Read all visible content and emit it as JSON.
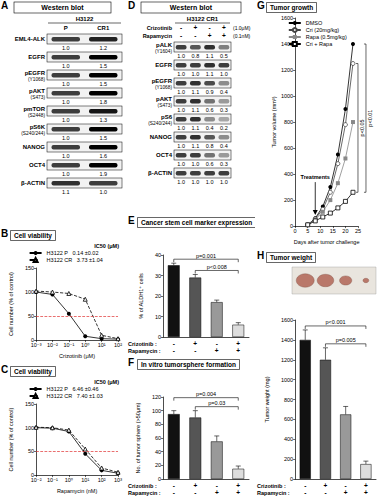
{
  "western_blots": [
    {
      "panel": "A",
      "title": "Western blot",
      "cell_line": "H3122",
      "columns": [
        "P",
        "CR1"
      ],
      "rows": [
        {
          "label": "EML4-ALK",
          "values": [
            "1.0",
            "1.2"
          ]
        },
        {
          "label": "EGFR",
          "values": [
            "1.0",
            "1.5"
          ]
        },
        {
          "label": "pEGFR",
          "site": "(Y1068)",
          "values": [
            "1.0",
            "1.5"
          ]
        },
        {
          "label": "pAKT",
          "site": "(S473)",
          "values": [
            "1.0",
            "1.8"
          ]
        },
        {
          "label": "pmTOR",
          "site": "(S2448)",
          "values": [
            "1.0",
            "1.3"
          ]
        },
        {
          "label": "pS6K",
          "site": "(S240/244)",
          "values": [
            "1.0",
            "1.5"
          ]
        },
        {
          "label": "NANOG",
          "values": [
            "1.0",
            "1.6"
          ]
        },
        {
          "label": "OCT4",
          "values": [
            "1.0",
            "1.9"
          ]
        },
        {
          "label": "β-ACTIN",
          "values": [
            "1.1",
            "1.0"
          ]
        }
      ]
    },
    {
      "panel": "D",
      "title": "Western blot",
      "cell_line": "H3122 CR1",
      "treatments": [
        {
          "label": "Crizotinib",
          "signs": [
            "-",
            "+",
            "-",
            "+"
          ],
          "dose": "(1.0μM)"
        },
        {
          "label": "Rapamycin",
          "signs": [
            "-",
            "-",
            "+",
            "+"
          ],
          "dose": "(0.1nM)"
        }
      ],
      "rows": [
        {
          "label": "pALK",
          "site": "(Y1604)",
          "values": [
            "1.0",
            "0.8",
            "1.1",
            "0.5"
          ]
        },
        {
          "label": "EGFR",
          "values": [
            "1.0",
            "1.0",
            "1.1",
            "1.0"
          ]
        },
        {
          "label": "pEGFR",
          "site": "(Y1068)",
          "values": [
            "1.0",
            "1.1",
            "0.9",
            "0.4"
          ]
        },
        {
          "label": "pAKT",
          "site": "(S473)",
          "values": [
            "1.0",
            "1.1",
            "0.6",
            "0.3"
          ]
        },
        {
          "label": "pS6",
          "site": "(S240/244)",
          "values": [
            "1.0",
            "1.1",
            "0.4",
            "0.2"
          ]
        },
        {
          "label": "NANOG",
          "values": [
            "1.0",
            "1.1",
            "0.8",
            "0.4"
          ]
        },
        {
          "label": "OCT4",
          "values": [
            "1.0",
            "1.0",
            "0.6",
            "0.3"
          ]
        },
        {
          "label": "β-ACTIN",
          "values": [
            "1.0",
            "1.0",
            "1.0",
            "1.0"
          ]
        }
      ]
    }
  ],
  "chart_data": [
    {
      "panel": "B",
      "type": "line",
      "title": "Cell viability",
      "x_label": "Crizotinib (μM)",
      "y_label": "Cell number (% of control)",
      "log": "x",
      "grid": false,
      "legend": "upper left",
      "ic50_header": "IC50 (μM)",
      "xlim": [
        0.001,
        100
      ],
      "xticks": [
        {
          "value": 0.001,
          "label": "10⁻³"
        },
        {
          "value": 0.01,
          "label": "10⁻²"
        },
        {
          "value": 0.1,
          "label": "10⁻¹"
        },
        {
          "value": 1,
          "label": "10⁰"
        },
        {
          "value": 10,
          "label": "10¹"
        },
        {
          "value": 100,
          "label": "10²"
        }
      ],
      "ylim": [
        0,
        150
      ],
      "yticks": [
        0,
        50,
        100,
        150
      ],
      "reference_line": {
        "y": 50,
        "color": "#e03030"
      },
      "x": [
        0.001,
        0.01,
        0.1,
        1,
        10,
        100
      ],
      "series": [
        {
          "name": "H3122 P",
          "color": "#000000",
          "marker": "circle",
          "line_style": "solid",
          "ic50": "0.14 ±0.02",
          "values": [
            100,
            95,
            55,
            8,
            3,
            2
          ]
        },
        {
          "name": "H3122 CR",
          "color": "#000000",
          "marker": "triangle_open",
          "line_style": "dashed",
          "ic50": "3.73 ±1.04",
          "values": [
            102,
            100,
            97,
            85,
            10,
            3
          ]
        }
      ]
    },
    {
      "panel": "C",
      "type": "line",
      "title": "Cell viability",
      "x_label": "Rapamycin (nM)",
      "y_label": "Cell number (% of control)",
      "log": "x",
      "grid": false,
      "legend": "upper left",
      "ic50_header": "IC50 (μM)",
      "xlim": [
        0.01,
        1000
      ],
      "xticks": [
        {
          "value": 0.01,
          "label": "10⁻²"
        },
        {
          "value": 0.1,
          "label": "10⁻¹"
        },
        {
          "value": 1,
          "label": "10⁰"
        },
        {
          "value": 10,
          "label": "10¹"
        },
        {
          "value": 100,
          "label": "10²"
        },
        {
          "value": 1000,
          "label": "10³"
        }
      ],
      "ylim": [
        0,
        150
      ],
      "yticks": [
        0,
        50,
        100,
        150
      ],
      "reference_line": {
        "y": 50,
        "color": "#e03030"
      },
      "x": [
        0.01,
        0.1,
        1,
        10,
        100,
        1000
      ],
      "series": [
        {
          "name": "H3122 P",
          "color": "#000000",
          "marker": "circle",
          "line_style": "solid",
          "ic50": "6.46 ±0.46",
          "values": [
            100,
            99,
            92,
            45,
            10,
            4
          ]
        },
        {
          "name": "H3122 CR",
          "color": "#000000",
          "marker": "triangle_open",
          "line_style": "dashed",
          "ic50": "7.40 ±1.03",
          "values": [
            101,
            100,
            95,
            55,
            15,
            6
          ]
        }
      ]
    },
    {
      "panel": "E",
      "type": "bar",
      "title": "Cancer stem cell marker expression",
      "y_label": "% of ALDH1⁺ cells",
      "grid": false,
      "categories": [
        null,
        null,
        null,
        null
      ],
      "values": [
        35,
        29,
        17,
        6
      ],
      "errors": [
        1,
        1.5,
        1,
        1
      ],
      "colors": [
        "#111111",
        "#555555",
        "#999999",
        "#dddddd"
      ],
      "ylim": [
        0,
        40
      ],
      "yticks": [
        0,
        10,
        20,
        30,
        40
      ],
      "treatments": [
        {
          "label": "Crizotinib :",
          "signs": [
            "-",
            "+",
            "-",
            "+"
          ]
        },
        {
          "label": "Rapamycin :",
          "signs": [
            "-",
            "-",
            "+",
            "+"
          ]
        }
      ],
      "comparisons": [
        {
          "between": [
            1,
            3
          ],
          "label": "p<0.008"
        },
        {
          "between": [
            0,
            3
          ],
          "label": "p=0.001"
        }
      ]
    },
    {
      "panel": "F",
      "type": "bar",
      "title": "In vitro tumorsphere formation",
      "y_label": "No. of tumor sphere (>50μm)",
      "grid": false,
      "categories": [
        null,
        null,
        null,
        null
      ],
      "values": [
        95,
        90,
        55,
        15
      ],
      "errors": [
        5,
        10,
        8,
        4
      ],
      "colors": [
        "#111111",
        "#555555",
        "#999999",
        "#dddddd"
      ],
      "ylim": [
        0,
        120
      ],
      "yticks": [
        0,
        20,
        40,
        60,
        80,
        100,
        120
      ],
      "treatments": [
        {
          "label": "Crizotinib :",
          "signs": [
            "-",
            "+",
            "-",
            "+"
          ]
        },
        {
          "label": "Rapamycin :",
          "signs": [
            "-",
            "-",
            "+",
            "+"
          ]
        }
      ],
      "comparisons": [
        {
          "between": [
            1,
            3
          ],
          "label": "p=0.03"
        },
        {
          "between": [
            0,
            3
          ],
          "label": "p=0.004"
        }
      ]
    },
    {
      "panel": "G",
      "type": "line",
      "title": "Tumor growth",
      "x_label": "Days after tumor challenge",
      "y_label": "Tumor volume (mm³)",
      "grid": false,
      "legend": "upper left",
      "xlim": [
        0,
        25
      ],
      "xticks": [
        0,
        5,
        10,
        15,
        20,
        25
      ],
      "ylim": [
        0,
        1600
      ],
      "yticks": [
        0,
        200,
        400,
        600,
        800,
        1000,
        1200,
        1400,
        1600
      ],
      "x": [
        5,
        8,
        11,
        14,
        17,
        20,
        23
      ],
      "series": [
        {
          "name": "DMSO",
          "color": "#000000",
          "marker": "circle",
          "line_style": "solid",
          "values": [
            10,
            60,
            150,
            300,
            550,
            900,
            1400
          ]
        },
        {
          "name": "Cri (20mg/kg)",
          "color": "#444444",
          "marker": "circle_open",
          "line_style": "solid",
          "values": [
            10,
            55,
            130,
            260,
            480,
            780,
            1250
          ]
        },
        {
          "name": "Rapa (0.5mg/kg)",
          "color": "#888888",
          "marker": "square",
          "line_style": "solid",
          "values": [
            10,
            50,
            110,
            200,
            330,
            520,
            800
          ]
        },
        {
          "name": "Cri + Rapa",
          "color": "#000000",
          "marker": "square_open",
          "line_style": "solid",
          "values": [
            10,
            40,
            70,
            100,
            140,
            190,
            260
          ]
        }
      ],
      "annotations": [
        {
          "text": "Treatments",
          "x": 8
        }
      ],
      "comparisons": [
        {
          "between": [
            1,
            3
          ],
          "label": "p<0.05"
        },
        {
          "between": [
            0,
            3
          ],
          "label": "p<0.01"
        }
      ]
    },
    {
      "panel": "H",
      "type": "bar",
      "title": "Tumor weight",
      "y_label": "Tumor weight (mg)",
      "grid": false,
      "categories": [
        null,
        null,
        null,
        null
      ],
      "values": [
        1400,
        1200,
        650,
        150
      ],
      "errors": [
        100,
        120,
        80,
        30
      ],
      "colors": [
        "#111111",
        "#555555",
        "#999999",
        "#dddddd"
      ],
      "ylim": [
        0,
        1600
      ],
      "yticks": [
        0,
        200,
        400,
        600,
        800,
        1000,
        1200,
        1400,
        1600
      ],
      "treatments": [
        {
          "label": "Crizotinib :",
          "signs": [
            "-",
            "+",
            "-",
            "+"
          ]
        },
        {
          "label": "Rapamycin :",
          "signs": [
            "-",
            "-",
            "+",
            "+"
          ]
        }
      ],
      "comparisons": [
        {
          "between": [
            1,
            3
          ],
          "label": "p=0.005"
        },
        {
          "between": [
            0,
            3
          ],
          "label": "p<0.001"
        }
      ]
    }
  ]
}
